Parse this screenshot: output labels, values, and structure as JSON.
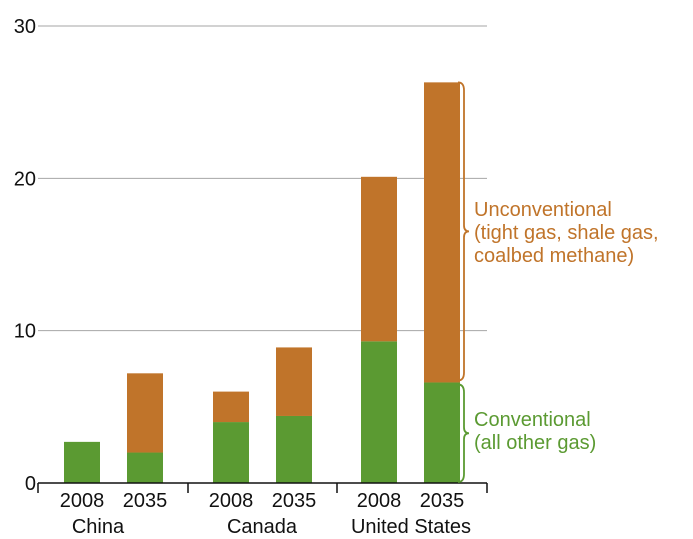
{
  "chart_data": {
    "type": "bar",
    "stacked": true,
    "groups": [
      "China",
      "Canada",
      "United States"
    ],
    "categories": [
      "2008",
      "2035",
      "2008",
      "2035",
      "2008",
      "2035"
    ],
    "category_group": [
      "China",
      "China",
      "Canada",
      "Canada",
      "United States",
      "United States"
    ],
    "series": [
      {
        "name_lines": [
          "Conventional",
          "(all other gas)"
        ],
        "color": "#5b9a32",
        "values": [
          2.7,
          2.0,
          4.0,
          4.4,
          9.3,
          6.6
        ]
      },
      {
        "name_lines": [
          "Unconventional",
          "(tight gas, shale gas,",
          "coalbed methane)"
        ],
        "color": "#c0742a",
        "values": [
          0,
          5.2,
          2.0,
          4.5,
          10.8,
          19.7
        ]
      }
    ],
    "y_ticks": [
      "0",
      "10",
      "20",
      "30"
    ],
    "ylim": [
      0,
      30
    ],
    "grid": true,
    "legend_position": "right"
  }
}
